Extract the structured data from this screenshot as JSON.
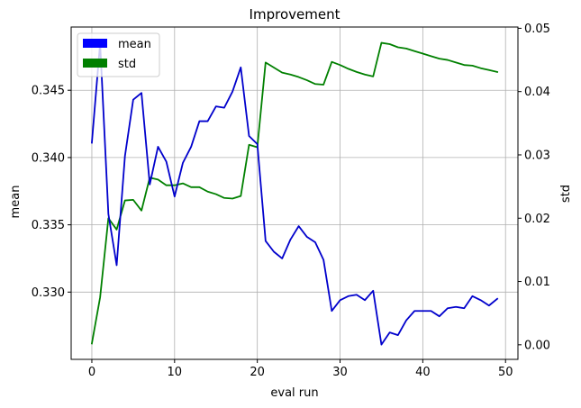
{
  "chart_data": {
    "type": "line",
    "title": "Improvement",
    "xlabel": "eval run",
    "ylabel_left": "mean",
    "ylabel_right": "std",
    "xlim": [
      -2.5,
      51.5
    ],
    "ylim_left": [
      0.325,
      0.3497
    ],
    "ylim_right": [
      -0.0023,
      0.0502
    ],
    "x_ticks": [
      0,
      10,
      20,
      30,
      40,
      50
    ],
    "x_tick_labels": [
      "0",
      "10",
      "20",
      "30",
      "40",
      "50"
    ],
    "y_left_ticks": [
      0.33,
      0.335,
      0.34,
      0.345
    ],
    "y_left_tick_labels": [
      "0.330",
      "0.335",
      "0.340",
      "0.345"
    ],
    "y_right_ticks": [
      0.0,
      0.01,
      0.02,
      0.03,
      0.04,
      0.05
    ],
    "y_right_tick_labels": [
      "0.00",
      "0.01",
      "0.02",
      "0.03",
      "0.04",
      "0.05"
    ],
    "grid": true,
    "legend_position": "upper-left",
    "x": [
      0,
      1,
      2,
      3,
      4,
      5,
      6,
      7,
      8,
      9,
      10,
      11,
      12,
      13,
      14,
      15,
      16,
      17,
      18,
      19,
      20,
      21,
      22,
      23,
      24,
      25,
      26,
      27,
      28,
      29,
      30,
      31,
      32,
      33,
      34,
      35,
      36,
      37,
      38,
      39,
      40,
      41,
      42,
      43,
      44,
      45,
      46,
      47,
      48,
      49
    ],
    "series": [
      {
        "name": "mean",
        "axis": "left",
        "color": "#0000cc",
        "legend_color": "#0000ff",
        "values": [
          0.3411,
          0.3485,
          0.3358,
          0.332,
          0.3401,
          0.3443,
          0.3448,
          0.338,
          0.3408,
          0.3397,
          0.3371,
          0.3396,
          0.3408,
          0.3427,
          0.3427,
          0.3438,
          0.3437,
          0.3449,
          0.3467,
          0.3416,
          0.341,
          0.3338,
          0.333,
          0.3325,
          0.3339,
          0.3349,
          0.3341,
          0.3337,
          0.3324,
          0.3286,
          0.3294,
          0.3297,
          0.3298,
          0.3294,
          0.3301,
          0.3261,
          0.327,
          0.3268,
          0.3279,
          0.3286,
          0.3286,
          0.3286,
          0.3282,
          0.3288,
          0.3289,
          0.3288,
          0.3297,
          0.3294,
          0.329,
          0.3295
        ]
      },
      {
        "name": "std",
        "axis": "right",
        "color": "#008000",
        "legend_color": "#008000",
        "values": [
          0.0002,
          0.0075,
          0.02,
          0.0182,
          0.0228,
          0.0229,
          0.0212,
          0.0264,
          0.0261,
          0.0252,
          0.0252,
          0.0255,
          0.0249,
          0.0249,
          0.0242,
          0.0238,
          0.0232,
          0.0231,
          0.0235,
          0.0316,
          0.0312,
          0.0446,
          0.0438,
          0.043,
          0.0427,
          0.0423,
          0.0418,
          0.0412,
          0.0411,
          0.0447,
          0.0442,
          0.0436,
          0.0431,
          0.0427,
          0.0424,
          0.0477,
          0.0475,
          0.047,
          0.0468,
          0.0464,
          0.046,
          0.0456,
          0.0452,
          0.045,
          0.0446,
          0.0442,
          0.0441,
          0.0437,
          0.0434,
          0.0431
        ]
      }
    ]
  }
}
